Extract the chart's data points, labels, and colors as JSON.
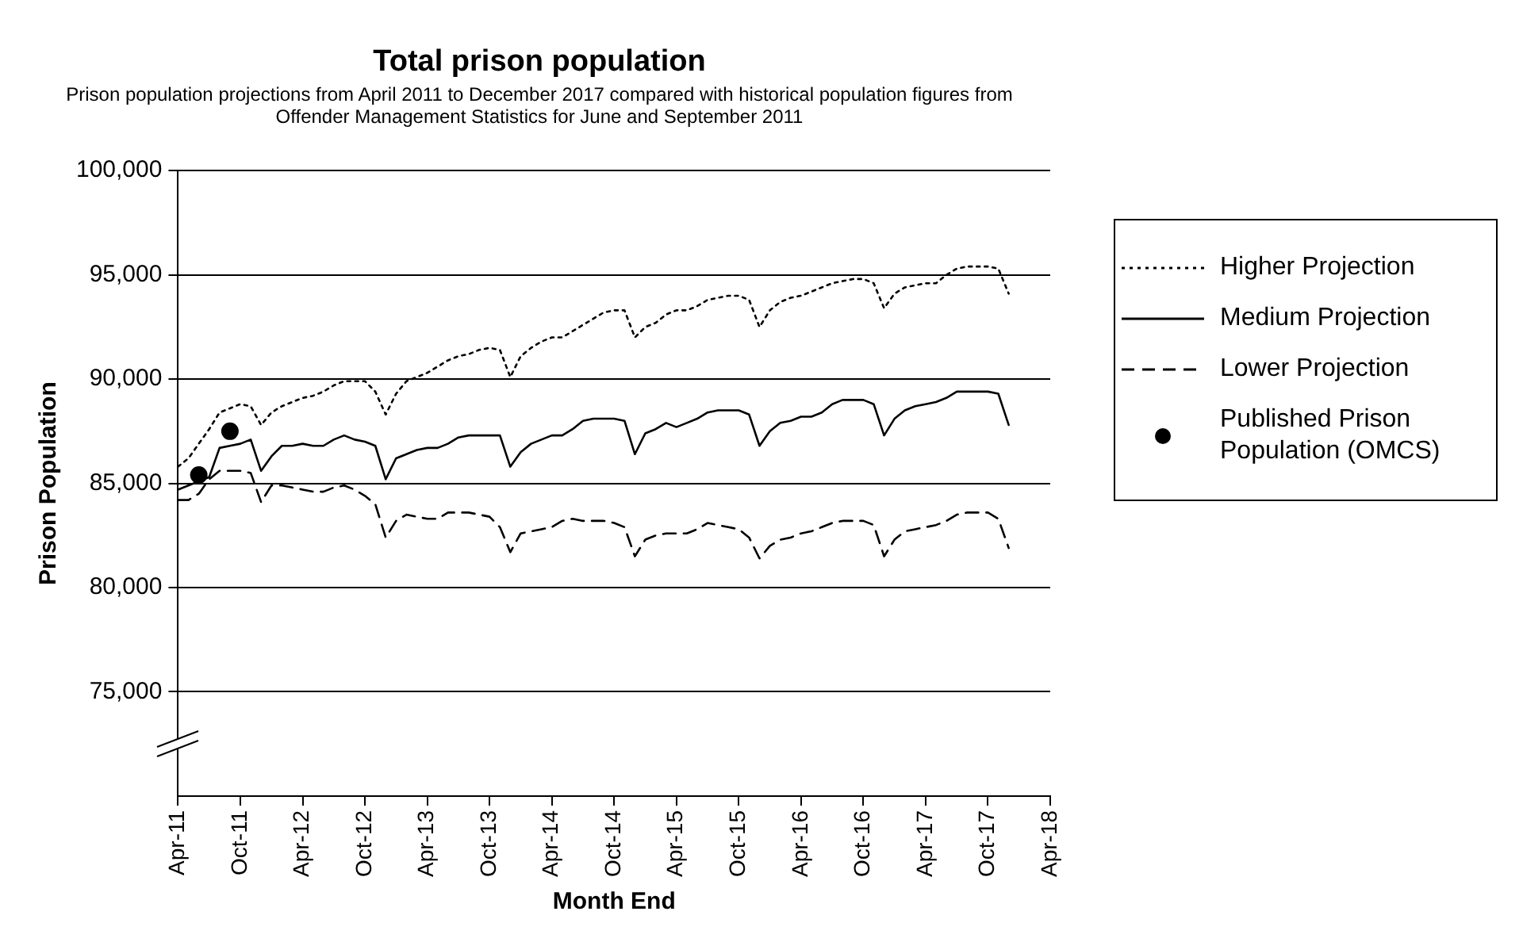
{
  "chart_data": {
    "type": "line",
    "title": "Total prison population",
    "subtitle": "Prison population projections from April 2011 to December 2017 compared with historical population figures from Offender Management Statistics for June and September 2011",
    "xlabel": "Month End",
    "ylabel": "Prison Population",
    "x": [
      "2011-04",
      "2011-05",
      "2011-06",
      "2011-07",
      "2011-08",
      "2011-09",
      "2011-10",
      "2011-11",
      "2011-12",
      "2012-01",
      "2012-02",
      "2012-03",
      "2012-04",
      "2012-05",
      "2012-06",
      "2012-07",
      "2012-08",
      "2012-09",
      "2012-10",
      "2012-11",
      "2012-12",
      "2013-01",
      "2013-02",
      "2013-03",
      "2013-04",
      "2013-05",
      "2013-06",
      "2013-07",
      "2013-08",
      "2013-09",
      "2013-10",
      "2013-11",
      "2013-12",
      "2014-01",
      "2014-02",
      "2014-03",
      "2014-04",
      "2014-05",
      "2014-06",
      "2014-07",
      "2014-08",
      "2014-09",
      "2014-10",
      "2014-11",
      "2014-12",
      "2015-01",
      "2015-02",
      "2015-03",
      "2015-04",
      "2015-05",
      "2015-06",
      "2015-07",
      "2015-08",
      "2015-09",
      "2015-10",
      "2015-11",
      "2015-12",
      "2016-01",
      "2016-02",
      "2016-03",
      "2016-04",
      "2016-05",
      "2016-06",
      "2016-07",
      "2016-08",
      "2016-09",
      "2016-10",
      "2016-11",
      "2016-12",
      "2017-01",
      "2017-02",
      "2017-03",
      "2017-04",
      "2017-05",
      "2017-06",
      "2017-07",
      "2017-08",
      "2017-09",
      "2017-10",
      "2017-11",
      "2017-12"
    ],
    "series": [
      {
        "name": "Higher Projection",
        "color": "#000000",
        "line_style": "dotted",
        "values": [
          85800,
          86200,
          86900,
          87600,
          88400,
          88600,
          88800,
          88700,
          87800,
          88400,
          88700,
          88900,
          89100,
          89200,
          89400,
          89700,
          89900,
          89900,
          89900,
          89400,
          88300,
          89300,
          89900,
          90100,
          90300,
          90600,
          90900,
          91100,
          91200,
          91400,
          91500,
          91400,
          90100,
          91100,
          91500,
          91800,
          92000,
          92000,
          92300,
          92600,
          92900,
          93200,
          93300,
          93300,
          92000,
          92500,
          92700,
          93100,
          93300,
          93300,
          93500,
          93800,
          93900,
          94000,
          94000,
          93800,
          92500,
          93300,
          93700,
          93900,
          94000,
          94200,
          94400,
          94600,
          94700,
          94800,
          94800,
          94600,
          93400,
          94100,
          94400,
          94500,
          94600,
          94600,
          95000,
          95300,
          95400,
          95400,
          95400,
          95300,
          94100
        ]
      },
      {
        "name": "Medium Projection",
        "color": "#000000",
        "line_style": "solid",
        "values": [
          84700,
          84900,
          85100,
          85300,
          86700,
          86800,
          86900,
          87100,
          85600,
          86300,
          86800,
          86800,
          86900,
          86800,
          86800,
          87100,
          87300,
          87100,
          87000,
          86800,
          85200,
          86200,
          86400,
          86600,
          86700,
          86700,
          86900,
          87200,
          87300,
          87300,
          87300,
          87300,
          85800,
          86500,
          86900,
          87100,
          87300,
          87300,
          87600,
          88000,
          88100,
          88100,
          88100,
          88000,
          86400,
          87400,
          87600,
          87900,
          87700,
          87900,
          88100,
          88400,
          88500,
          88500,
          88500,
          88300,
          86800,
          87500,
          87900,
          88000,
          88200,
          88200,
          88400,
          88800,
          89000,
          89000,
          89000,
          88800,
          87300,
          88100,
          88500,
          88700,
          88800,
          88900,
          89100,
          89400,
          89400,
          89400,
          89400,
          89300,
          87800
        ]
      },
      {
        "name": "Lower Projection",
        "color": "#000000",
        "line_style": "dashed",
        "values": [
          84200,
          84200,
          84500,
          85200,
          85600,
          85600,
          85600,
          85500,
          84100,
          84900,
          84900,
          84800,
          84700,
          84600,
          84600,
          84800,
          84900,
          84700,
          84400,
          84000,
          82400,
          83200,
          83500,
          83400,
          83300,
          83300,
          83600,
          83600,
          83600,
          83500,
          83400,
          82900,
          81700,
          82600,
          82700,
          82800,
          82900,
          83200,
          83300,
          83200,
          83200,
          83200,
          83100,
          82900,
          81500,
          82300,
          82500,
          82600,
          82600,
          82600,
          82800,
          83100,
          83000,
          82900,
          82800,
          82400,
          81400,
          82000,
          82300,
          82400,
          82600,
          82700,
          82900,
          83100,
          83200,
          83200,
          83200,
          83000,
          81500,
          82300,
          82700,
          82800,
          82900,
          83000,
          83200,
          83500,
          83600,
          83600,
          83600,
          83300,
          81900
        ]
      },
      {
        "name": "Published Prison Population (OMCS)",
        "type": "scatter",
        "color": "#000000",
        "marker": "circle",
        "x": [
          "2011-06",
          "2011-09"
        ],
        "values": [
          85400,
          87500
        ]
      }
    ],
    "marker": "none",
    "xlim": [
      "2011-04",
      "2018-04"
    ],
    "xticks": [
      {
        "value": "2011-04",
        "label": "Apr-11"
      },
      {
        "value": "2011-10",
        "label": "Oct-11"
      },
      {
        "value": "2012-04",
        "label": "Apr-12"
      },
      {
        "value": "2012-10",
        "label": "Oct-12"
      },
      {
        "value": "2013-04",
        "label": "Apr-13"
      },
      {
        "value": "2013-10",
        "label": "Oct-13"
      },
      {
        "value": "2014-04",
        "label": "Apr-14"
      },
      {
        "value": "2014-10",
        "label": "Oct-14"
      },
      {
        "value": "2015-04",
        "label": "Apr-15"
      },
      {
        "value": "2015-10",
        "label": "Oct-15"
      },
      {
        "value": "2016-04",
        "label": "Apr-16"
      },
      {
        "value": "2016-10",
        "label": "Oct-16"
      },
      {
        "value": "2017-04",
        "label": "Apr-17"
      },
      {
        "value": "2017-10",
        "label": "Oct-17"
      },
      {
        "value": "2018-04",
        "label": "Apr-18"
      }
    ],
    "ylim": [
      70000,
      100000
    ],
    "yticks": [
      {
        "value": 75000,
        "label": "75,000"
      },
      {
        "value": 80000,
        "label": "80,000"
      },
      {
        "value": 85000,
        "label": "85,000"
      },
      {
        "value": 90000,
        "label": "90,000"
      },
      {
        "value": 95000,
        "label": "95,000"
      },
      {
        "value": 100000,
        "label": "100,000"
      }
    ],
    "grid": "y",
    "legend": "right"
  }
}
